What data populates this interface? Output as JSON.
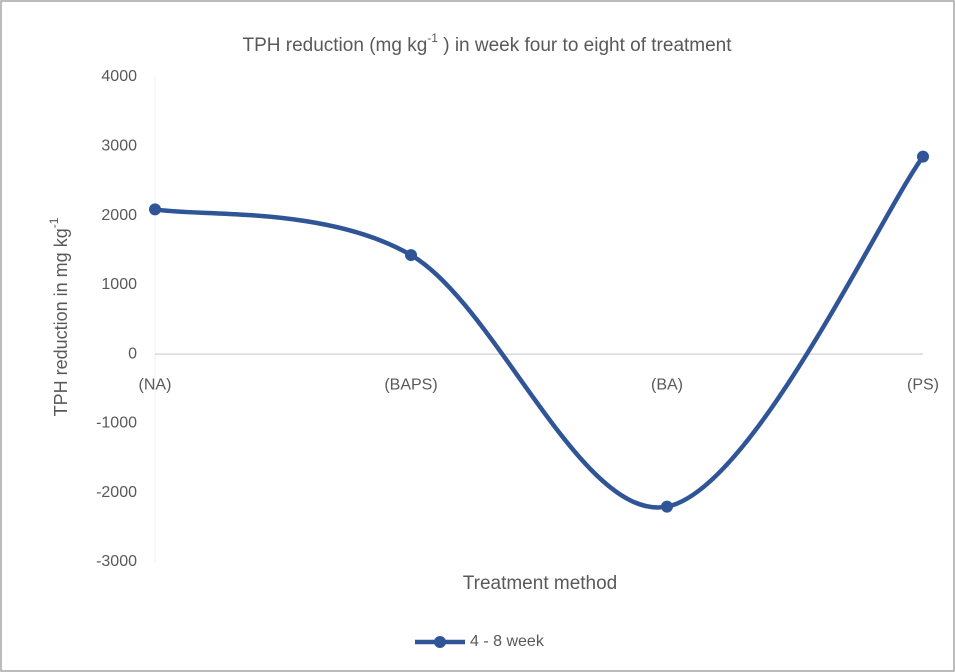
{
  "chart_data": {
    "type": "line",
    "title": [
      "TPH reduction  (mg kg",
      "-1",
      " ) in week four to eight of treatment"
    ],
    "y_label": [
      "TPH reduction in mg kg",
      "-1"
    ],
    "x_label": "Treatment method",
    "categories": [
      "(NA)",
      "(BAPS)",
      "(BA)",
      "(PS)"
    ],
    "series": [
      {
        "name": "4 - 8 week",
        "color": "#2f5597",
        "values": [
          2090,
          1430,
          -2200,
          2850
        ]
      }
    ],
    "ylim": [
      -3000,
      4000
    ],
    "yticks": [
      -3000,
      -2000,
      -1000,
      0,
      1000,
      2000,
      3000,
      4000
    ],
    "grid": false,
    "smooth": true,
    "legend": "bottom"
  }
}
